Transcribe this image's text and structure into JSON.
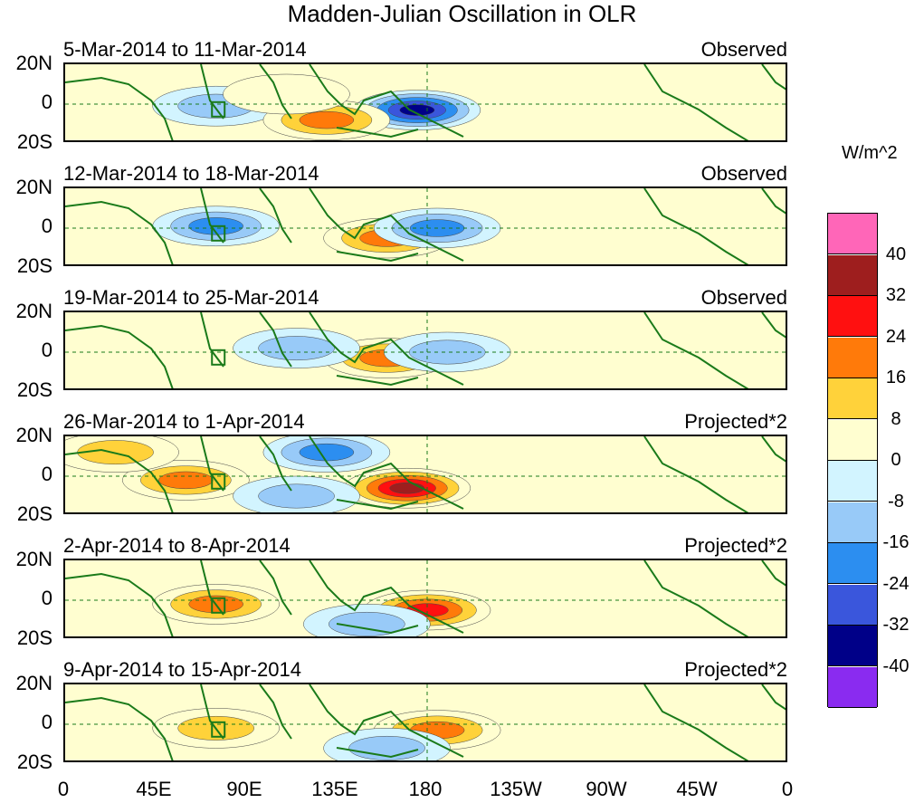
{
  "title": "Madden-Julian Oscillation in OLR",
  "lat_labels": [
    "20N",
    "0",
    "20S"
  ],
  "lon_labels": [
    "0",
    "45E",
    "90E",
    "135E",
    "180",
    "135W",
    "90W",
    "45W",
    "0"
  ],
  "units": "W/m^2",
  "panels": [
    {
      "date": "5-Mar-2014 to 11-Mar-2014",
      "kind": "Observed"
    },
    {
      "date": "12-Mar-2014 to 18-Mar-2014",
      "kind": "Observed"
    },
    {
      "date": "19-Mar-2014 to 25-Mar-2014",
      "kind": "Observed"
    },
    {
      "date": "26-Mar-2014 to 1-Apr-2014",
      "kind": "Projected*2"
    },
    {
      "date": "2-Apr-2014 to 8-Apr-2014",
      "kind": "Projected*2"
    },
    {
      "date": "9-Apr-2014 to 15-Apr-2014",
      "kind": "Projected*2"
    }
  ],
  "colorbar": {
    "labels": [
      "40",
      "32",
      "24",
      "16",
      "8",
      "0",
      "-8",
      "-16",
      "-24",
      "-32",
      "-40"
    ],
    "colors": [
      "#ff66b8",
      "#9e1e1e",
      "#ff1010",
      "#ff7a0a",
      "#ffd23a",
      "#fffed0",
      "#d2f4ff",
      "#98caf8",
      "#2c8ef0",
      "#3a56dc",
      "#000088",
      "#8a2bf0"
    ]
  },
  "chart_data": {
    "type": "heatmap",
    "title": "Madden-Julian Oscillation in OLR",
    "x_axis": {
      "range_deg_east": [
        0,
        360
      ],
      "ticks": [
        "0",
        "45E",
        "90E",
        "135E",
        "180",
        "135W",
        "90W",
        "45W",
        "0"
      ]
    },
    "y_axis": {
      "range_deg": [
        -20,
        20
      ],
      "ticks": [
        "20N",
        "0",
        "20S"
      ]
    },
    "units": "W/m^2",
    "levels": [
      -40,
      -32,
      -24,
      -16,
      -8,
      0,
      8,
      16,
      24,
      32,
      40
    ],
    "panels_anomaly_centers": [
      [
        {
          "lon": 175,
          "lat": -3,
          "value": -40
        },
        {
          "lon": 75,
          "lat": -1,
          "value": -16
        },
        {
          "lon": 130,
          "lat": -8,
          "value": 24
        },
        {
          "lon": 110,
          "lat": 5,
          "value": 8
        }
      ],
      [
        {
          "lon": 160,
          "lat": -5,
          "value": 24
        },
        {
          "lon": 185,
          "lat": 0,
          "value": -24
        },
        {
          "lon": 75,
          "lat": 1,
          "value": -24
        }
      ],
      [
        {
          "lon": 160,
          "lat": -3,
          "value": 24
        },
        {
          "lon": 115,
          "lat": 2,
          "value": -16
        },
        {
          "lon": 190,
          "lat": 0,
          "value": -16
        }
      ],
      [
        {
          "lon": 170,
          "lat": -6,
          "value": 40
        },
        {
          "lon": 60,
          "lat": -2,
          "value": 24
        },
        {
          "lon": 25,
          "lat": 12,
          "value": 16
        },
        {
          "lon": 130,
          "lat": 12,
          "value": -24
        },
        {
          "lon": 115,
          "lat": -10,
          "value": -16
        }
      ],
      [
        {
          "lon": 180,
          "lat": -5,
          "value": 32
        },
        {
          "lon": 75,
          "lat": -2,
          "value": 24
        },
        {
          "lon": 150,
          "lat": -12,
          "value": -16
        }
      ],
      [
        {
          "lon": 185,
          "lat": -3,
          "value": 24
        },
        {
          "lon": 75,
          "lat": -2,
          "value": 16
        },
        {
          "lon": 160,
          "lat": -12,
          "value": -16
        }
      ]
    ]
  }
}
